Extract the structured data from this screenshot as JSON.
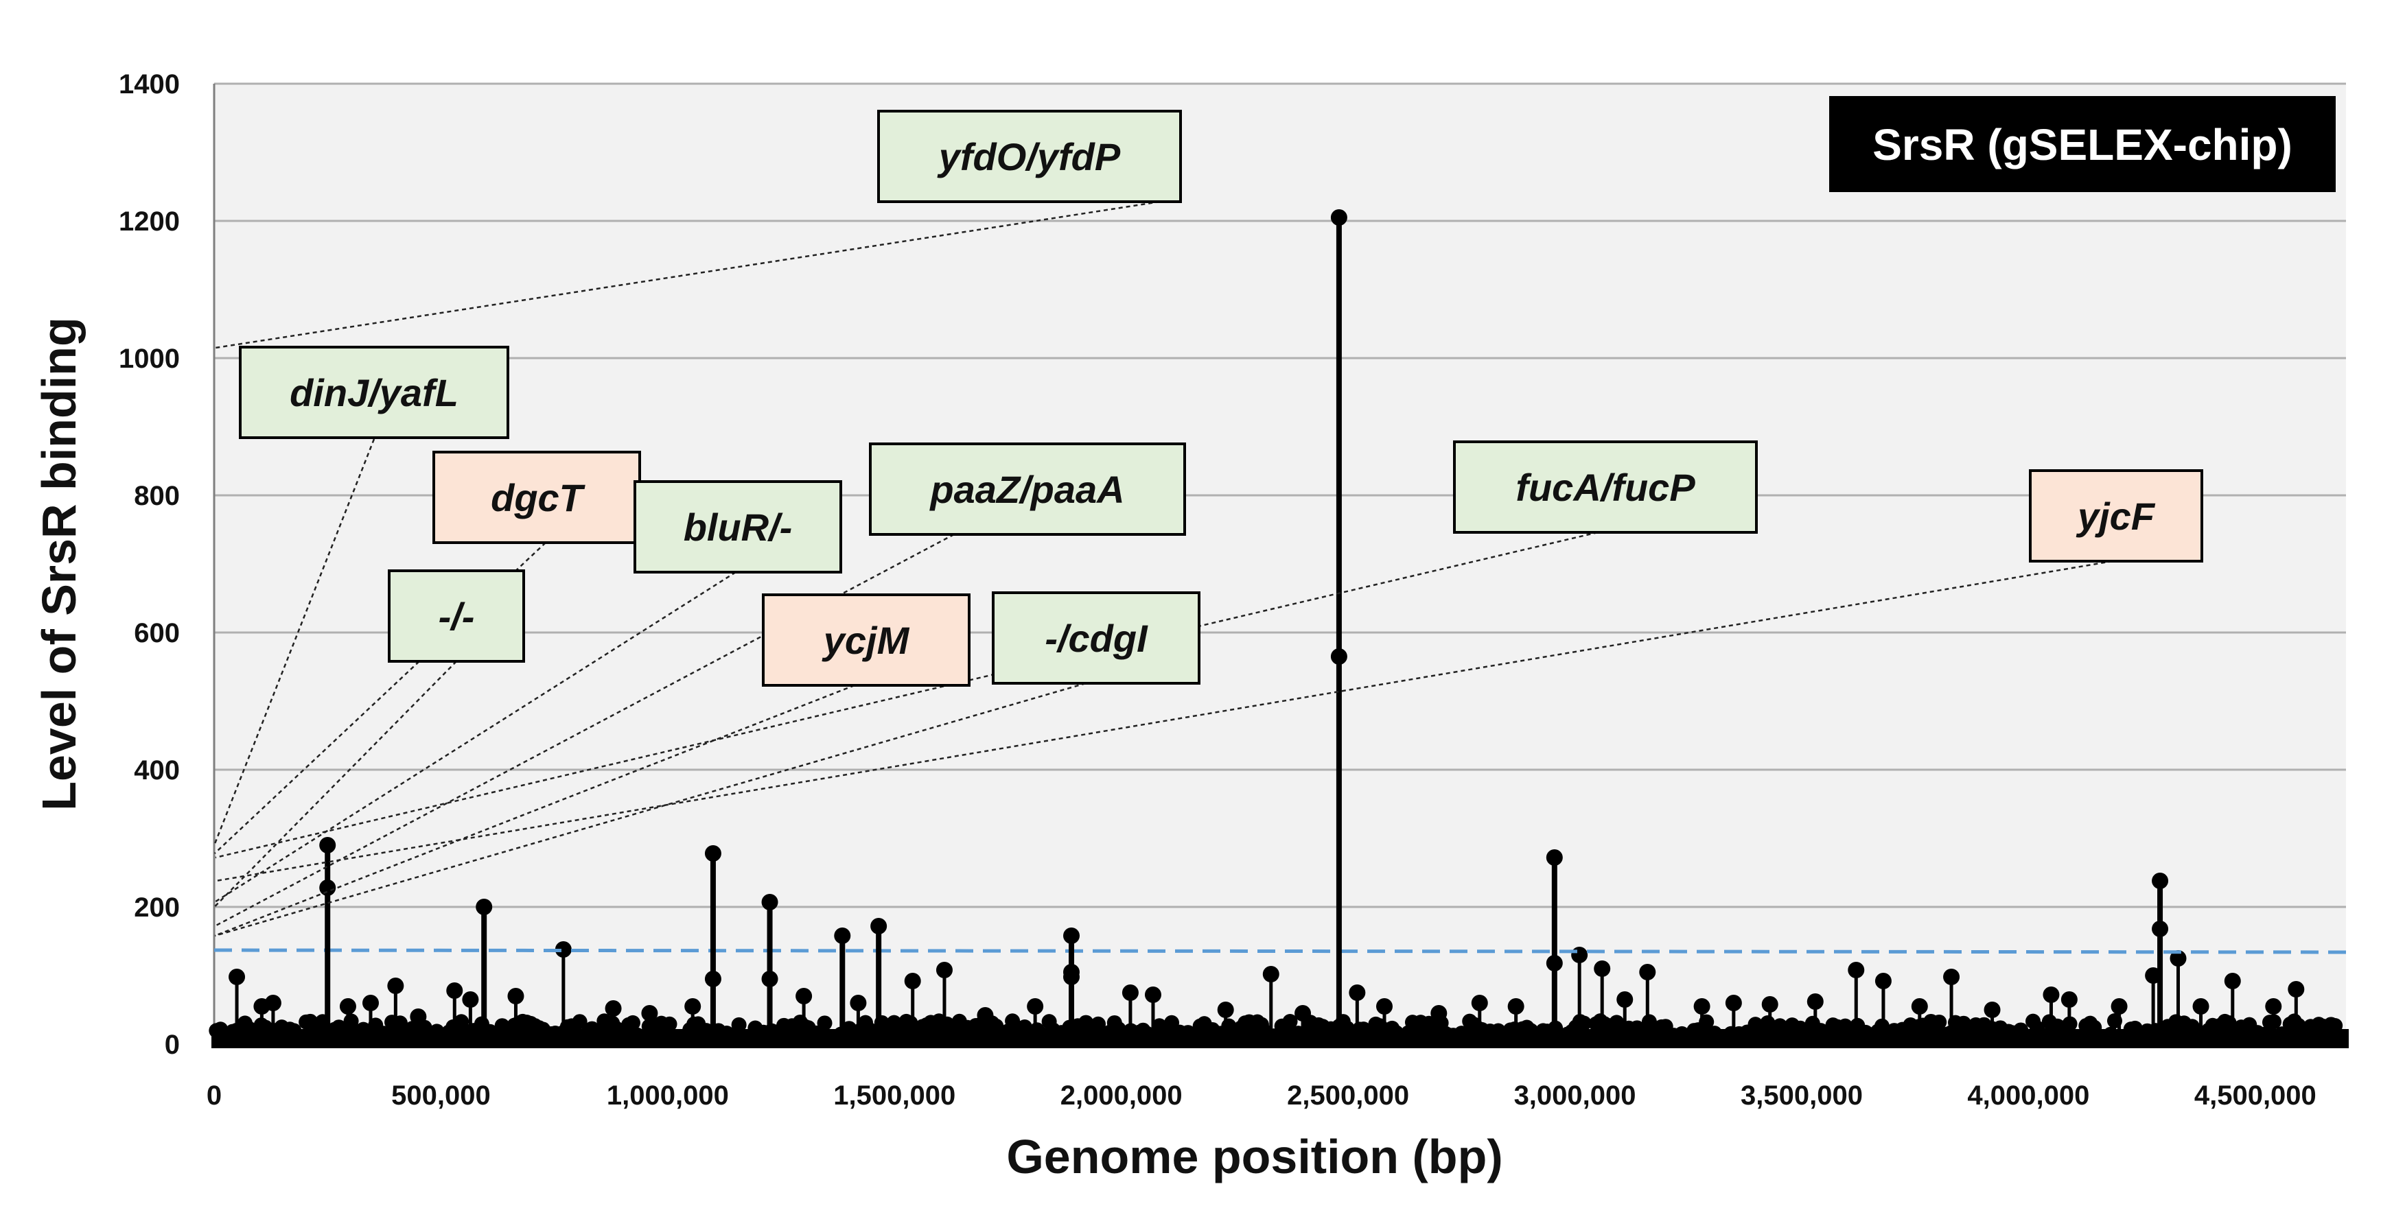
{
  "chart_data": {
    "type": "scatter",
    "style": "lollipop",
    "xlabel": "Genome position (bp)",
    "ylabel": "Level of SrsR binding",
    "xlim": [
      0,
      4700000
    ],
    "ylim": [
      0,
      1400
    ],
    "x_tick_labels": [
      "0",
      "500,000",
      "1,000,000",
      "1,500,000",
      "2,000,000",
      "2,500,000",
      "3,000,000",
      "3,500,000",
      "4,000,000",
      "4,500,000"
    ],
    "x_tick_values": [
      0,
      500000,
      1000000,
      1500000,
      2000000,
      2500000,
      3000000,
      3500000,
      4000000,
      4500000
    ],
    "y_tick_labels": [
      "0",
      "200",
      "400",
      "600",
      "800",
      "1000",
      "1200",
      "1400"
    ],
    "y_tick_values": [
      0,
      200,
      400,
      600,
      800,
      1000,
      1200,
      1400
    ],
    "grid": true,
    "legend": {
      "label": "SrsR (gSELEX-chip)",
      "placement": "top-right",
      "background": "#000000"
    },
    "threshold": {
      "y": 137,
      "color": "#5B9BD5",
      "style": "dashed"
    },
    "colors": {
      "peak": "#000000",
      "label_green": "#E2EFDA",
      "label_pink": "#FCE4D6",
      "plot_bg": "#F2F2F2",
      "grid": "#B0B0B0"
    },
    "peaks": [
      {
        "x": 250000,
        "values": [
          290,
          228
        ],
        "label": "dinJ/yafL",
        "category": "green"
      },
      {
        "x": 595000,
        "values": [
          200
        ],
        "label": "-/-",
        "category": "green"
      },
      {
        "x": 1100000,
        "values": [
          278,
          95
        ],
        "label": "dgcT",
        "category": "pink"
      },
      {
        "x": 1225000,
        "values": [
          207,
          95
        ],
        "label": "bluR/-",
        "category": "green"
      },
      {
        "x": 1385000,
        "values": [
          158
        ],
        "label": "ycjM",
        "category": "pink"
      },
      {
        "x": 1465000,
        "values": [
          172
        ],
        "label": "paaZ/paaA",
        "category": "green"
      },
      {
        "x": 1890000,
        "values": [
          158,
          105,
          98
        ],
        "label": "-/cdgI",
        "category": "green"
      },
      {
        "x": 2480000,
        "values": [
          1205,
          565
        ],
        "label": "yfdO/yfdP",
        "category": "green"
      },
      {
        "x": 2955000,
        "values": [
          272,
          118
        ],
        "label": "fucA/fucP",
        "category": "green"
      },
      {
        "x": 4290000,
        "values": [
          238,
          168
        ],
        "label": "yjcF",
        "category": "pink"
      }
    ],
    "minor_peaks": [
      {
        "x": 50000,
        "y": 98
      },
      {
        "x": 105000,
        "y": 55
      },
      {
        "x": 130000,
        "y": 60
      },
      {
        "x": 295000,
        "y": 55
      },
      {
        "x": 345000,
        "y": 60
      },
      {
        "x": 400000,
        "y": 85
      },
      {
        "x": 450000,
        "y": 40
      },
      {
        "x": 530000,
        "y": 78
      },
      {
        "x": 565000,
        "y": 65
      },
      {
        "x": 665000,
        "y": 70
      },
      {
        "x": 770000,
        "y": 138
      },
      {
        "x": 880000,
        "y": 52
      },
      {
        "x": 960000,
        "y": 45
      },
      {
        "x": 1055000,
        "y": 55
      },
      {
        "x": 1300000,
        "y": 70
      },
      {
        "x": 1420000,
        "y": 60
      },
      {
        "x": 1540000,
        "y": 92
      },
      {
        "x": 1610000,
        "y": 108
      },
      {
        "x": 1700000,
        "y": 42
      },
      {
        "x": 1810000,
        "y": 55
      },
      {
        "x": 2020000,
        "y": 75
      },
      {
        "x": 2070000,
        "y": 72
      },
      {
        "x": 2230000,
        "y": 50
      },
      {
        "x": 2330000,
        "y": 102
      },
      {
        "x": 2400000,
        "y": 45
      },
      {
        "x": 2520000,
        "y": 75
      },
      {
        "x": 2580000,
        "y": 55
      },
      {
        "x": 2700000,
        "y": 45
      },
      {
        "x": 2790000,
        "y": 60
      },
      {
        "x": 2870000,
        "y": 55
      },
      {
        "x": 3010000,
        "y": 130
      },
      {
        "x": 3060000,
        "y": 110
      },
      {
        "x": 3110000,
        "y": 65
      },
      {
        "x": 3160000,
        "y": 105
      },
      {
        "x": 3280000,
        "y": 55
      },
      {
        "x": 3350000,
        "y": 60
      },
      {
        "x": 3430000,
        "y": 58
      },
      {
        "x": 3530000,
        "y": 62
      },
      {
        "x": 3620000,
        "y": 108
      },
      {
        "x": 3680000,
        "y": 92
      },
      {
        "x": 3760000,
        "y": 55
      },
      {
        "x": 3830000,
        "y": 98
      },
      {
        "x": 3920000,
        "y": 50
      },
      {
        "x": 4050000,
        "y": 72
      },
      {
        "x": 4090000,
        "y": 65
      },
      {
        "x": 4200000,
        "y": 55
      },
      {
        "x": 4275000,
        "y": 100
      },
      {
        "x": 4330000,
        "y": 125
      },
      {
        "x": 4380000,
        "y": 55
      },
      {
        "x": 4450000,
        "y": 92
      },
      {
        "x": 4540000,
        "y": 55
      },
      {
        "x": 4590000,
        "y": 80
      },
      {
        "x": 4650000,
        "y": 25
      }
    ]
  }
}
